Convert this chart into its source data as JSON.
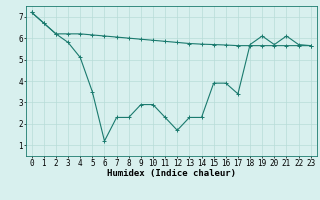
{
  "line1_x": [
    0,
    1,
    2,
    3,
    4,
    5,
    6,
    7,
    8,
    9,
    10,
    11,
    12,
    13,
    14,
    15,
    16,
    17,
    18,
    19,
    20,
    21,
    22,
    23
  ],
  "line1_y": [
    7.2,
    6.7,
    6.2,
    6.2,
    6.2,
    6.15,
    6.1,
    6.05,
    6.0,
    5.95,
    5.9,
    5.85,
    5.8,
    5.75,
    5.72,
    5.7,
    5.68,
    5.65,
    5.65,
    5.65,
    5.65,
    5.65,
    5.65,
    5.65
  ],
  "line2_x": [
    0,
    1,
    2,
    3,
    4,
    5,
    6,
    7,
    8,
    9,
    10,
    11,
    12,
    13,
    14,
    15,
    16,
    17,
    18,
    19,
    20,
    21,
    22,
    23
  ],
  "line2_y": [
    7.2,
    6.7,
    6.2,
    5.8,
    5.1,
    3.5,
    1.2,
    2.3,
    2.3,
    2.9,
    2.9,
    2.3,
    1.7,
    2.3,
    2.3,
    3.9,
    3.9,
    3.4,
    5.7,
    6.1,
    5.7,
    6.1,
    5.7,
    5.65
  ],
  "line_color": "#1a7a6e",
  "bg_color": "#d8f0ee",
  "grid_color": "#b8dcd8",
  "xlabel": "Humidex (Indice chaleur)",
  "xlim": [
    -0.5,
    23.5
  ],
  "ylim": [
    0.5,
    7.5
  ],
  "xticks": [
    0,
    1,
    2,
    3,
    4,
    5,
    6,
    7,
    8,
    9,
    10,
    11,
    12,
    13,
    14,
    15,
    16,
    17,
    18,
    19,
    20,
    21,
    22,
    23
  ],
  "yticks": [
    1,
    2,
    3,
    4,
    5,
    6,
    7
  ],
  "xlabel_fontsize": 6.5,
  "tick_fontsize": 5.5
}
